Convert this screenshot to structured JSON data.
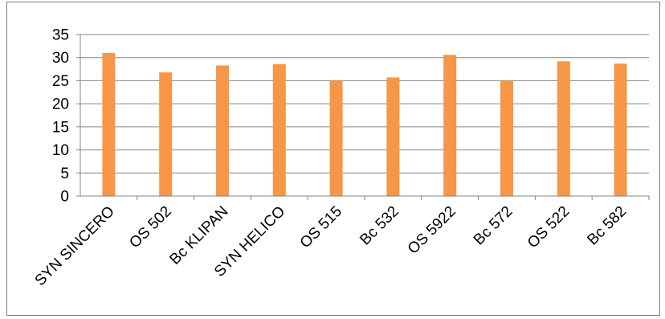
{
  "chart_data": {
    "type": "bar",
    "categories": [
      "SYN SINCERO",
      "OS 502",
      "Bc KLIPAN",
      "SYN HELICO",
      "OS 515",
      "Bc 532",
      "OS 5922",
      "Bc 572",
      "OS 522",
      "Bc 582"
    ],
    "values": [
      31.0,
      26.8,
      28.3,
      28.6,
      25.0,
      25.7,
      30.6,
      25.0,
      29.2,
      28.7
    ],
    "ylim": [
      0,
      35
    ],
    "yticks": [
      0,
      5,
      10,
      15,
      20,
      25,
      30,
      35
    ],
    "grid": true,
    "legend": "none",
    "bar_color": "#F79646"
  }
}
